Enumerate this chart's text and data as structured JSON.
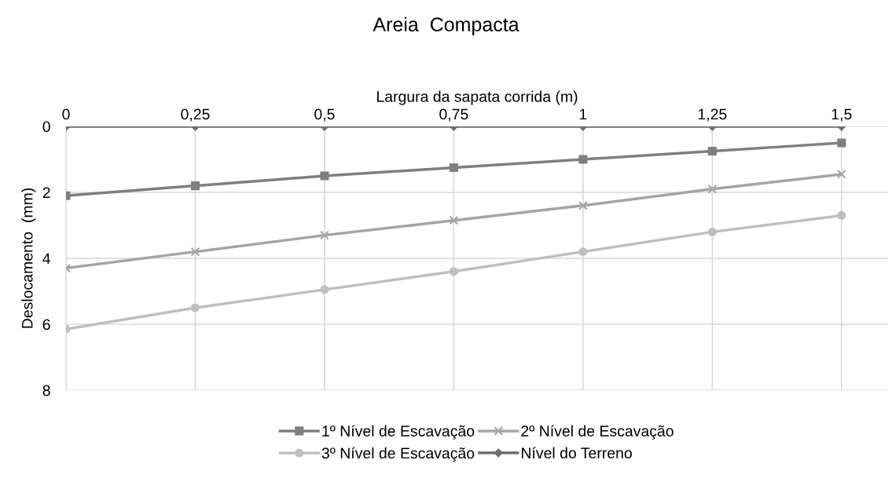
{
  "chart_data": {
    "type": "line",
    "title": "Areia  Compacta",
    "xlabel": "Largura da sapata corrida (m)",
    "ylabel": "Deslocamento  (mm)",
    "x": [
      0,
      0.25,
      0.5,
      0.75,
      1,
      1.25,
      1.5
    ],
    "xlim": [
      0,
      1.59
    ],
    "xticks": [
      0,
      {
        "value": 0.25,
        "label": "0,25"
      },
      {
        "value": 0.5,
        "label": "0,5"
      },
      {
        "value": 0.75,
        "label": "0,75"
      },
      1,
      {
        "value": 1.25,
        "label": "1,25"
      },
      {
        "value": 1.5,
        "label": "1,5"
      }
    ],
    "ylim": [
      8,
      0
    ],
    "yticks": [
      0,
      2,
      4,
      6,
      8
    ],
    "grid": true,
    "legend": "bottom",
    "line_style": "solid",
    "series": [
      {
        "name": "1º Nível de Escavação",
        "color": "#7f7f7f",
        "marker": "square",
        "values": [
          2.1,
          1.8,
          1.5,
          1.25,
          1.0,
          0.75,
          0.5
        ]
      },
      {
        "name": "2º Nível de Escavação",
        "color": "#a5a5a5",
        "marker": "cross",
        "values": [
          4.3,
          3.8,
          3.3,
          2.85,
          2.4,
          1.9,
          1.45
        ]
      },
      {
        "name": "3º Nível de Escavação",
        "color": "#bfbfbf",
        "marker": "circle",
        "values": [
          6.15,
          5.5,
          4.95,
          4.4,
          3.8,
          3.2,
          2.7
        ]
      },
      {
        "name": "Nível do Terreno",
        "color": "#6f6f6f",
        "marker": "diamond",
        "values": [
          0,
          0,
          0,
          0,
          0,
          0,
          0
        ]
      }
    ]
  }
}
